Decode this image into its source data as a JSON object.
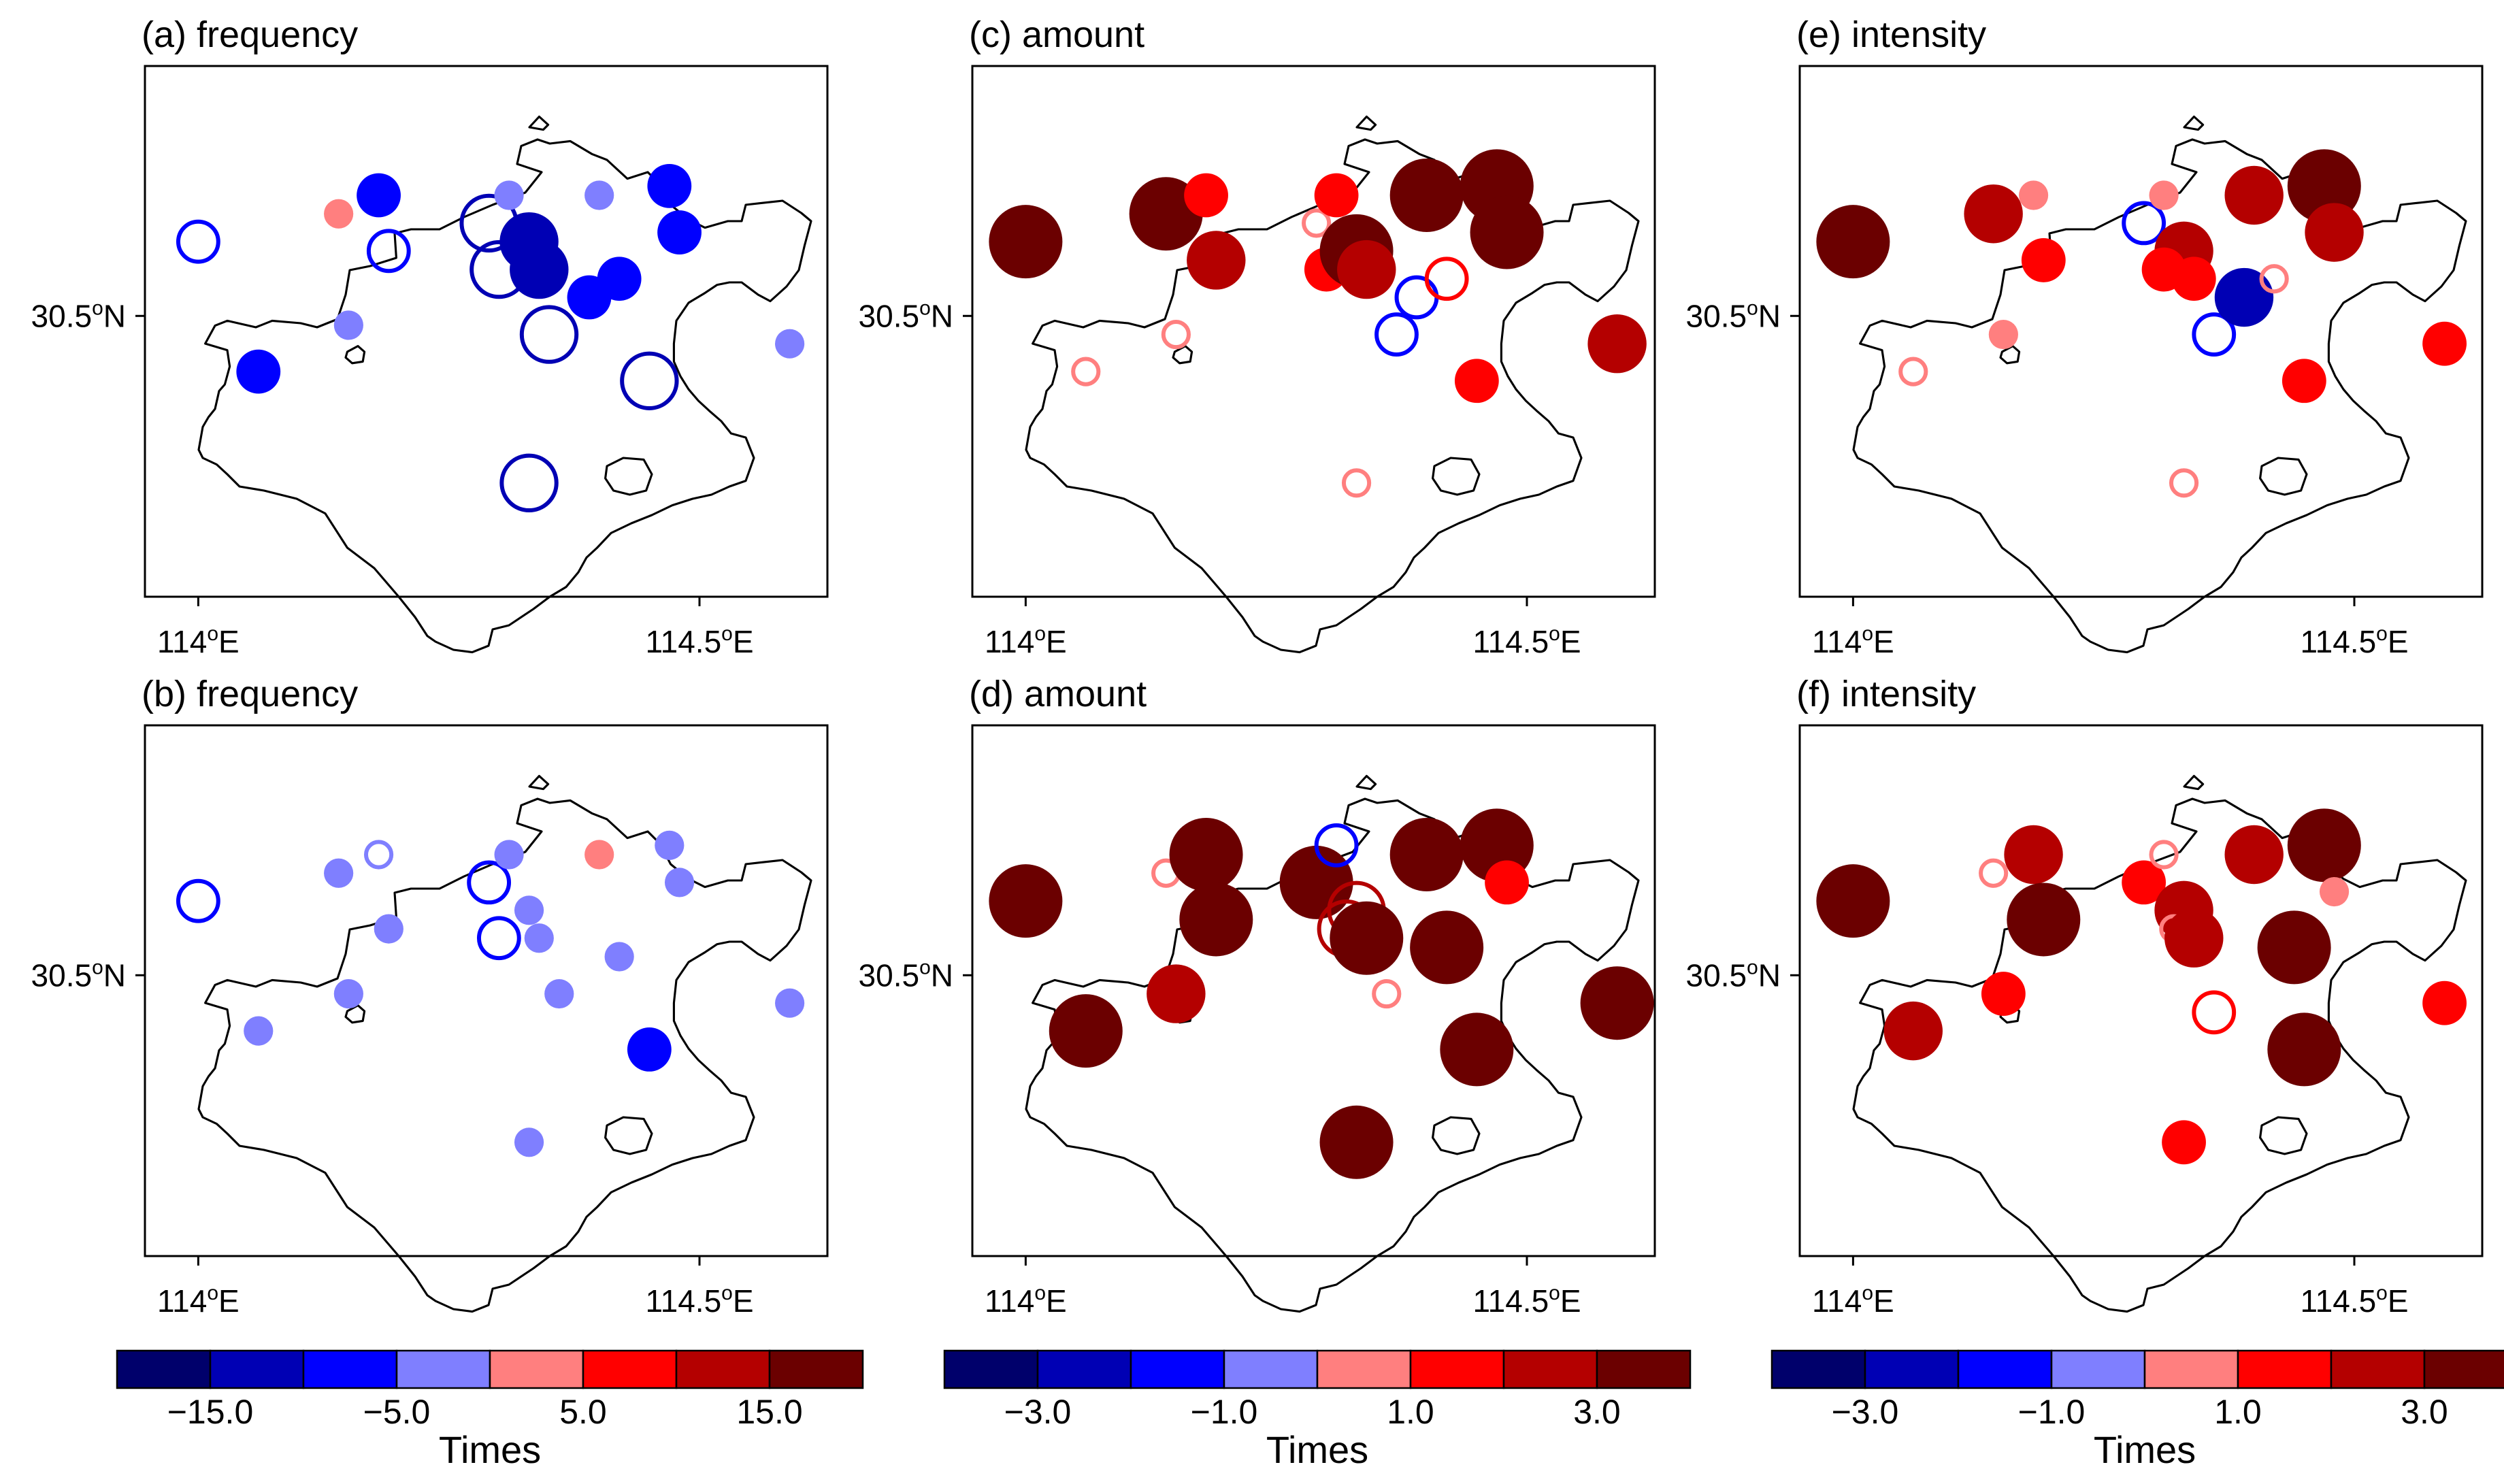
{
  "panels": [
    {
      "id": "a",
      "title": "(a) frequency",
      "var": "frequency",
      "lon_labels": [
        "114",
        "114.5"
      ],
      "lat_label": "30.5",
      "stations": [
        {
          "lon": 114.0,
          "lat": 30.58,
          "cls": "-10 to -5",
          "filled": false
        },
        {
          "lon": 114.06,
          "lat": 30.44,
          "cls": "-10 to -5",
          "filled": true
        },
        {
          "lon": 114.14,
          "lat": 30.61,
          "cls": "0 to 5",
          "filled": true
        },
        {
          "lon": 114.15,
          "lat": 30.49,
          "cls": "-5 to 0",
          "filled": true
        },
        {
          "lon": 114.18,
          "lat": 30.63,
          "cls": "-10 to -5",
          "filled": true
        },
        {
          "lon": 114.19,
          "lat": 30.57,
          "cls": "-10 to -5",
          "filled": false
        },
        {
          "lon": 114.29,
          "lat": 30.6,
          "cls": "-15 to -10",
          "filled": false
        },
        {
          "lon": 114.3,
          "lat": 30.55,
          "cls": "-15 to -10",
          "filled": false
        },
        {
          "lon": 114.31,
          "lat": 30.63,
          "cls": "-5 to 0",
          "filled": true
        },
        {
          "lon": 114.33,
          "lat": 30.58,
          "cls": "-15 to -10",
          "filled": true
        },
        {
          "lon": 114.34,
          "lat": 30.55,
          "cls": "-15 to -10",
          "filled": true
        },
        {
          "lon": 114.35,
          "lat": 30.48,
          "cls": "-15 to -10",
          "filled": false
        },
        {
          "lon": 114.39,
          "lat": 30.52,
          "cls": "-10 to -5",
          "filled": true
        },
        {
          "lon": 114.4,
          "lat": 30.63,
          "cls": "-5 to 0",
          "filled": true
        },
        {
          "lon": 114.42,
          "lat": 30.54,
          "cls": "-10 to -5",
          "filled": true
        },
        {
          "lon": 114.45,
          "lat": 30.43,
          "cls": "-15 to -10",
          "filled": false
        },
        {
          "lon": 114.47,
          "lat": 30.64,
          "cls": "-10 to -5",
          "filled": true
        },
        {
          "lon": 114.48,
          "lat": 30.59,
          "cls": "-10 to -5",
          "filled": true
        },
        {
          "lon": 114.59,
          "lat": 30.47,
          "cls": "-5 to 0",
          "filled": true
        },
        {
          "lon": 114.33,
          "lat": 30.32,
          "cls": "-15 to -10",
          "filled": false
        }
      ]
    },
    {
      "id": "b",
      "title": "(b) frequency",
      "var": "frequency",
      "lon_labels": [
        "114",
        "114.5"
      ],
      "lat_label": "30.5",
      "stations": [
        {
          "lon": 114.0,
          "lat": 30.58,
          "cls": "-10 to -5",
          "filled": false
        },
        {
          "lon": 114.06,
          "lat": 30.44,
          "cls": "-5 to 0",
          "filled": true
        },
        {
          "lon": 114.14,
          "lat": 30.61,
          "cls": "-5 to 0",
          "filled": true
        },
        {
          "lon": 114.15,
          "lat": 30.48,
          "cls": "-5 to 0",
          "filled": true
        },
        {
          "lon": 114.18,
          "lat": 30.63,
          "cls": "-5 to 0",
          "filled": false
        },
        {
          "lon": 114.19,
          "lat": 30.55,
          "cls": "-5 to 0",
          "filled": true
        },
        {
          "lon": 114.29,
          "lat": 30.6,
          "cls": "-10 to -5",
          "filled": false
        },
        {
          "lon": 114.3,
          "lat": 30.54,
          "cls": "-10 to -5",
          "filled": false
        },
        {
          "lon": 114.31,
          "lat": 30.63,
          "cls": "-5 to 0",
          "filled": true
        },
        {
          "lon": 114.33,
          "lat": 30.57,
          "cls": "-5 to 0",
          "filled": true
        },
        {
          "lon": 114.34,
          "lat": 30.54,
          "cls": "-5 to 0",
          "filled": true
        },
        {
          "lon": 114.36,
          "lat": 30.48,
          "cls": "-5 to 0",
          "filled": true
        },
        {
          "lon": 114.4,
          "lat": 30.63,
          "cls": "0 to 5",
          "filled": true
        },
        {
          "lon": 114.42,
          "lat": 30.52,
          "cls": "-5 to 0",
          "filled": true
        },
        {
          "lon": 114.45,
          "lat": 30.42,
          "cls": "-10 to -5",
          "filled": true
        },
        {
          "lon": 114.47,
          "lat": 30.64,
          "cls": "-5 to 0",
          "filled": true
        },
        {
          "lon": 114.48,
          "lat": 30.6,
          "cls": "-5 to 0",
          "filled": true
        },
        {
          "lon": 114.59,
          "lat": 30.47,
          "cls": "-5 to 0",
          "filled": true
        },
        {
          "lon": 114.33,
          "lat": 30.32,
          "cls": "-5 to 0",
          "filled": true
        }
      ]
    },
    {
      "id": "c",
      "title": "(c) amount",
      "var": "amount",
      "lon_labels": [
        "114",
        "114.5"
      ],
      "lat_label": "30.5",
      "stations": [
        {
          "lon": 114.0,
          "lat": 30.58,
          "cls": "3 to 4",
          "filled": true
        },
        {
          "lon": 114.06,
          "lat": 30.44,
          "cls": "0 to 1",
          "filled": false
        },
        {
          "lon": 114.14,
          "lat": 30.61,
          "cls": "3 to 4",
          "filled": true
        },
        {
          "lon": 114.15,
          "lat": 30.48,
          "cls": "0 to 1",
          "filled": false
        },
        {
          "lon": 114.18,
          "lat": 30.63,
          "cls": "1 to 2",
          "filled": true
        },
        {
          "lon": 114.19,
          "lat": 30.56,
          "cls": "2 to 3",
          "filled": true
        },
        {
          "lon": 114.29,
          "lat": 30.6,
          "cls": "0 to 1",
          "filled": false
        },
        {
          "lon": 114.3,
          "lat": 30.55,
          "cls": "1 to 2",
          "filled": true
        },
        {
          "lon": 114.31,
          "lat": 30.63,
          "cls": "1 to 2",
          "filled": true
        },
        {
          "lon": 114.33,
          "lat": 30.57,
          "cls": "3 to 4",
          "filled": true
        },
        {
          "lon": 114.34,
          "lat": 30.55,
          "cls": "2 to 3",
          "filled": true
        },
        {
          "lon": 114.37,
          "lat": 30.48,
          "cls": "-2 to -1",
          "filled": false
        },
        {
          "lon": 114.39,
          "lat": 30.52,
          "cls": "-2 to -1",
          "filled": false
        },
        {
          "lon": 114.4,
          "lat": 30.63,
          "cls": "3 to 4",
          "filled": true
        },
        {
          "lon": 114.42,
          "lat": 30.54,
          "cls": "1 to 2",
          "filled": false
        },
        {
          "lon": 114.45,
          "lat": 30.43,
          "cls": "1 to 2",
          "filled": true
        },
        {
          "lon": 114.47,
          "lat": 30.64,
          "cls": "3 to 4",
          "filled": true
        },
        {
          "lon": 114.48,
          "lat": 30.59,
          "cls": "3 to 4",
          "filled": true
        },
        {
          "lon": 114.59,
          "lat": 30.47,
          "cls": "2 to 3",
          "filled": true
        },
        {
          "lon": 114.33,
          "lat": 30.32,
          "cls": "0 to 1",
          "filled": false
        }
      ]
    },
    {
      "id": "d",
      "title": "(d) amount",
      "var": "amount",
      "lon_labels": [
        "114",
        "114.5"
      ],
      "lat_label": "30.5",
      "stations": [
        {
          "lon": 114.0,
          "lat": 30.58,
          "cls": "3 to 4",
          "filled": true
        },
        {
          "lon": 114.06,
          "lat": 30.44,
          "cls": "3 to 4",
          "filled": true
        },
        {
          "lon": 114.14,
          "lat": 30.61,
          "cls": "0 to 1",
          "filled": false
        },
        {
          "lon": 114.15,
          "lat": 30.48,
          "cls": "2 to 3",
          "filled": true
        },
        {
          "lon": 114.18,
          "lat": 30.63,
          "cls": "3 to 4",
          "filled": true
        },
        {
          "lon": 114.19,
          "lat": 30.56,
          "cls": "3 to 4",
          "filled": true
        },
        {
          "lon": 114.29,
          "lat": 30.6,
          "cls": "3 to 4",
          "filled": true
        },
        {
          "lon": 114.31,
          "lat": 30.64,
          "cls": "-2 to -1",
          "filled": false
        },
        {
          "lon": 114.33,
          "lat": 30.57,
          "cls": "2 to 3",
          "filled": false
        },
        {
          "lon": 114.32,
          "lat": 30.55,
          "cls": "2 to 3",
          "filled": false
        },
        {
          "lon": 114.34,
          "lat": 30.54,
          "cls": "3 to 4",
          "filled": true
        },
        {
          "lon": 114.36,
          "lat": 30.48,
          "cls": "0 to 1",
          "filled": false
        },
        {
          "lon": 114.4,
          "lat": 30.63,
          "cls": "3 to 4",
          "filled": true
        },
        {
          "lon": 114.42,
          "lat": 30.53,
          "cls": "3 to 4",
          "filled": true
        },
        {
          "lon": 114.45,
          "lat": 30.42,
          "cls": "3 to 4",
          "filled": true
        },
        {
          "lon": 114.47,
          "lat": 30.64,
          "cls": "3 to 4",
          "filled": true
        },
        {
          "lon": 114.48,
          "lat": 30.6,
          "cls": "1 to 2",
          "filled": true
        },
        {
          "lon": 114.59,
          "lat": 30.47,
          "cls": "3 to 4",
          "filled": true
        },
        {
          "lon": 114.33,
          "lat": 30.32,
          "cls": "3 to 4",
          "filled": true
        }
      ]
    },
    {
      "id": "e",
      "title": "(e) intensity",
      "var": "intensity",
      "lon_labels": [
        "114",
        "114.5"
      ],
      "lat_label": "30.5",
      "stations": [
        {
          "lon": 114.0,
          "lat": 30.58,
          "cls": "3 to 4",
          "filled": true
        },
        {
          "lon": 114.06,
          "lat": 30.44,
          "cls": "0 to 1",
          "filled": false
        },
        {
          "lon": 114.14,
          "lat": 30.61,
          "cls": "2 to 3",
          "filled": true
        },
        {
          "lon": 114.15,
          "lat": 30.48,
          "cls": "0 to 1",
          "filled": true
        },
        {
          "lon": 114.18,
          "lat": 30.63,
          "cls": "0 to 1",
          "filled": true
        },
        {
          "lon": 114.19,
          "lat": 30.56,
          "cls": "1 to 2",
          "filled": true
        },
        {
          "lon": 114.29,
          "lat": 30.6,
          "cls": "-2 to -1",
          "filled": false
        },
        {
          "lon": 114.31,
          "lat": 30.63,
          "cls": "0 to 1",
          "filled": true
        },
        {
          "lon": 114.33,
          "lat": 30.57,
          "cls": "2 to 3",
          "filled": true
        },
        {
          "lon": 114.31,
          "lat": 30.55,
          "cls": "1 to 2",
          "filled": true
        },
        {
          "lon": 114.34,
          "lat": 30.54,
          "cls": "1 to 2",
          "filled": true
        },
        {
          "lon": 114.36,
          "lat": 30.48,
          "cls": "-2 to -1",
          "filled": false
        },
        {
          "lon": 114.39,
          "lat": 30.52,
          "cls": "-3 to -2",
          "filled": true
        },
        {
          "lon": 114.4,
          "lat": 30.63,
          "cls": "2 to 3",
          "filled": true
        },
        {
          "lon": 114.42,
          "lat": 30.54,
          "cls": "0 to 1",
          "filled": false
        },
        {
          "lon": 114.45,
          "lat": 30.43,
          "cls": "1 to 2",
          "filled": true
        },
        {
          "lon": 114.47,
          "lat": 30.64,
          "cls": "3 to 4",
          "filled": true
        },
        {
          "lon": 114.48,
          "lat": 30.59,
          "cls": "2 to 3",
          "filled": true
        },
        {
          "lon": 114.59,
          "lat": 30.47,
          "cls": "1 to 2",
          "filled": true
        },
        {
          "lon": 114.33,
          "lat": 30.32,
          "cls": "0 to 1",
          "filled": false
        }
      ]
    },
    {
      "id": "f",
      "title": "(f) intensity",
      "var": "intensity",
      "lon_labels": [
        "114",
        "114.5"
      ],
      "lat_label": "30.5",
      "stations": [
        {
          "lon": 114.0,
          "lat": 30.58,
          "cls": "3 to 4",
          "filled": true
        },
        {
          "lon": 114.06,
          "lat": 30.44,
          "cls": "2 to 3",
          "filled": true
        },
        {
          "lon": 114.14,
          "lat": 30.61,
          "cls": "0 to 1",
          "filled": false
        },
        {
          "lon": 114.15,
          "lat": 30.48,
          "cls": "1 to 2",
          "filled": true
        },
        {
          "lon": 114.18,
          "lat": 30.63,
          "cls": "2 to 3",
          "filled": true
        },
        {
          "lon": 114.19,
          "lat": 30.56,
          "cls": "3 to 4",
          "filled": true
        },
        {
          "lon": 114.29,
          "lat": 30.6,
          "cls": "1 to 2",
          "filled": true
        },
        {
          "lon": 114.31,
          "lat": 30.63,
          "cls": "0 to 1",
          "filled": false
        },
        {
          "lon": 114.33,
          "lat": 30.57,
          "cls": "2 to 3",
          "filled": true
        },
        {
          "lon": 114.32,
          "lat": 30.55,
          "cls": "0 to 1",
          "filled": false
        },
        {
          "lon": 114.34,
          "lat": 30.54,
          "cls": "2 to 3",
          "filled": true
        },
        {
          "lon": 114.36,
          "lat": 30.46,
          "cls": "1 to 2",
          "filled": false
        },
        {
          "lon": 114.4,
          "lat": 30.63,
          "cls": "2 to 3",
          "filled": true
        },
        {
          "lon": 114.44,
          "lat": 30.53,
          "cls": "3 to 4",
          "filled": true
        },
        {
          "lon": 114.45,
          "lat": 30.42,
          "cls": "3 to 4",
          "filled": true
        },
        {
          "lon": 114.47,
          "lat": 30.64,
          "cls": "3 to 4",
          "filled": true
        },
        {
          "lon": 114.48,
          "lat": 30.59,
          "cls": "0 to 1",
          "filled": true
        },
        {
          "lon": 114.59,
          "lat": 30.47,
          "cls": "1 to 2",
          "filled": true
        },
        {
          "lon": 114.33,
          "lat": 30.32,
          "cls": "1 to 2",
          "filled": true
        }
      ]
    }
  ],
  "colorbars": [
    {
      "id": "frequency",
      "label": "Times",
      "tick_labels": [
        "−15.0",
        "−5.0",
        "5.0",
        "15.0"
      ],
      "tick_values": [
        -15,
        -5,
        5,
        15
      ],
      "bins": [
        "-20 to -15",
        "-15 to -10",
        "-10 to -5",
        "-5 to 0",
        "0 to 5",
        "5 to 10",
        "10 to 15",
        "15 to 20"
      ],
      "colors": [
        "#00006b",
        "#0000b4",
        "#0000ff",
        "#7f7fff",
        "#ff7f7f",
        "#ff0000",
        "#b40000",
        "#6b0000"
      ]
    },
    {
      "id": "amount",
      "label": "Times",
      "tick_labels": [
        "−3.0",
        "−1.0",
        "1.0",
        "3.0"
      ],
      "tick_values": [
        -3,
        -1,
        1,
        3
      ],
      "bins": [
        "-4 to -3",
        "-3 to -2",
        "-2 to -1",
        "-1 to 0",
        "0 to 1",
        "1 to 2",
        "2 to 3",
        "3 to 4"
      ],
      "colors": [
        "#00006b",
        "#0000b4",
        "#0000ff",
        "#7f7fff",
        "#ff7f7f",
        "#ff0000",
        "#b40000",
        "#6b0000"
      ]
    },
    {
      "id": "intensity",
      "label": "Times",
      "tick_labels": [
        "−3.0",
        "−1.0",
        "1.0",
        "3.0"
      ],
      "tick_values": [
        -3,
        -1,
        1,
        3
      ],
      "bins": [
        "-4 to -3",
        "-3 to -2",
        "-2 to -1",
        "-1 to 0",
        "0 to 1",
        "1 to 2",
        "2 to 3",
        "3 to 4"
      ],
      "colors": [
        "#00006b",
        "#0000b4",
        "#0000ff",
        "#7f7fff",
        "#ff7f7f",
        "#ff0000",
        "#b40000",
        "#6b0000"
      ]
    }
  ]
}
